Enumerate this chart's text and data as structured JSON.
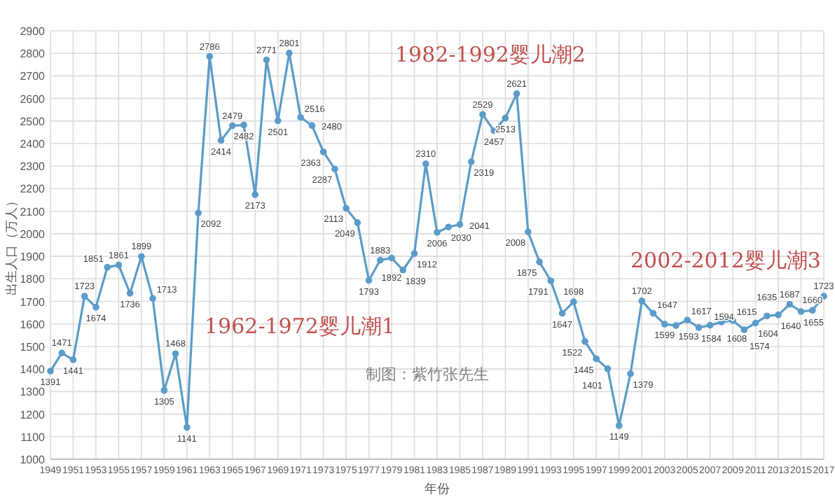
{
  "chart_data": {
    "type": "line",
    "xlabel": "年份",
    "ylabel": "出生人口（万人）",
    "x": [
      1949,
      1950,
      1951,
      1952,
      1953,
      1954,
      1955,
      1956,
      1957,
      1958,
      1959,
      1960,
      1961,
      1962,
      1963,
      1964,
      1965,
      1966,
      1967,
      1968,
      1969,
      1970,
      1971,
      1972,
      1973,
      1974,
      1975,
      1976,
      1977,
      1978,
      1979,
      1980,
      1981,
      1982,
      1983,
      1984,
      1985,
      1986,
      1987,
      1988,
      1989,
      1990,
      1991,
      1992,
      1993,
      1994,
      1995,
      1996,
      1997,
      1998,
      1999,
      2000,
      2001,
      2002,
      2003,
      2004,
      2005,
      2006,
      2007,
      2008,
      2009,
      2010,
      2011,
      2012,
      2013,
      2014,
      2015,
      2016,
      2017
    ],
    "series": [
      {
        "color": "#5b9bc8",
        "values": [
          1391,
          1471,
          1441,
          1723,
          1674,
          1851,
          1861,
          1736,
          1899,
          1713,
          1305,
          1468,
          1141,
          2092,
          2786,
          2414,
          2479,
          2482,
          2173,
          2771,
          2501,
          2801,
          2516,
          2480,
          2363,
          2287,
          2113,
          2049,
          1793,
          1883,
          1892,
          1839,
          1912,
          2310,
          2006,
          2030,
          2041,
          2319,
          2529,
          2457,
          2513,
          2621,
          2008,
          1875,
          1791,
          1647,
          1698,
          1522,
          1445,
          1401,
          1149,
          1379,
          1702,
          1647,
          1599,
          1593,
          1617,
          1584,
          1594,
          1608,
          1615,
          1574,
          1604,
          1635,
          1640,
          1687,
          1655,
          1660,
          1723
        ]
      }
    ],
    "xlim": [
      1949,
      2017
    ],
    "xticks": [
      1949,
      1951,
      1953,
      1955,
      1957,
      1959,
      1961,
      1963,
      1965,
      1967,
      1969,
      1971,
      1973,
      1975,
      1977,
      1979,
      1981,
      1983,
      1985,
      1987,
      1989,
      1991,
      1993,
      1995,
      1997,
      1999,
      2001,
      2003,
      2005,
      2007,
      2009,
      2011,
      2013,
      2015,
      2017
    ],
    "ylim": [
      1000,
      2900
    ],
    "yticks": [
      1000,
      1100,
      1200,
      1300,
      1400,
      1500,
      1600,
      1700,
      1800,
      1900,
      2000,
      2100,
      2200,
      2300,
      2400,
      2500,
      2600,
      2700,
      2800,
      2900
    ],
    "grid": true,
    "marker": "circle",
    "line_style": "solid",
    "data_labels": true,
    "annotations": [
      "1982-1992婴儿潮2",
      "1962-1972婴儿潮1",
      "2002-2012婴儿潮3",
      "制图：紫竹张先生"
    ]
  }
}
